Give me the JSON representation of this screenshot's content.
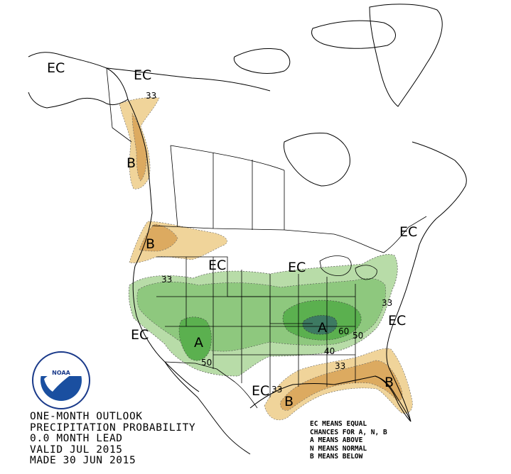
{
  "title_lines": [
    "ONE-MONTH OUTLOOK",
    "PRECIPITATION PROBABILITY",
    "0.0 MONTH LEAD",
    "VALID JUL 2015",
    "MADE 30 JUN 2015"
  ],
  "legend_lines": [
    "EC MEANS EQUAL",
    "CHANCES FOR A, N, B",
    "A MEANS ABOVE",
    "N MEANS NORMAL",
    "B MEANS BELOW"
  ],
  "logo": {
    "name": "NOAA",
    "ring_text": "NATIONAL OCEANIC AND ATMOSPHERIC ADMINISTRATION U.S. DEPARTMENT OF COMMERCE"
  },
  "map_labels": {
    "ec_alaska_west": "EC",
    "ec_alaska_east": "EC",
    "ec_pnw": "EC",
    "ec_north_central": "EC",
    "ec_great_lakes": "EC",
    "ec_west": "EC",
    "ec_texas": "EC",
    "ec_east_coast": "EC",
    "ec_new_england": "EC",
    "a_southwest": "A",
    "a_tennessee": "A",
    "b_bc": "B",
    "b_oregon": "B",
    "b_gulf": "B",
    "b_florida": "B",
    "c33_alaska": "33",
    "c33_nevada": "33",
    "c33_carolina": "33",
    "c33_gulf": "33",
    "c33_texas": "33",
    "c40": "40",
    "c50_west": "50",
    "c50_east": "50",
    "c60": "60"
  },
  "colors": {
    "above_33": "#b8dca8",
    "above_40": "#8ec87e",
    "above_50": "#5bb04f",
    "above_60": "#3d7a62",
    "below_33": "#f0d49a",
    "below_40": "#dcaa60",
    "boundary": "#000000"
  }
}
